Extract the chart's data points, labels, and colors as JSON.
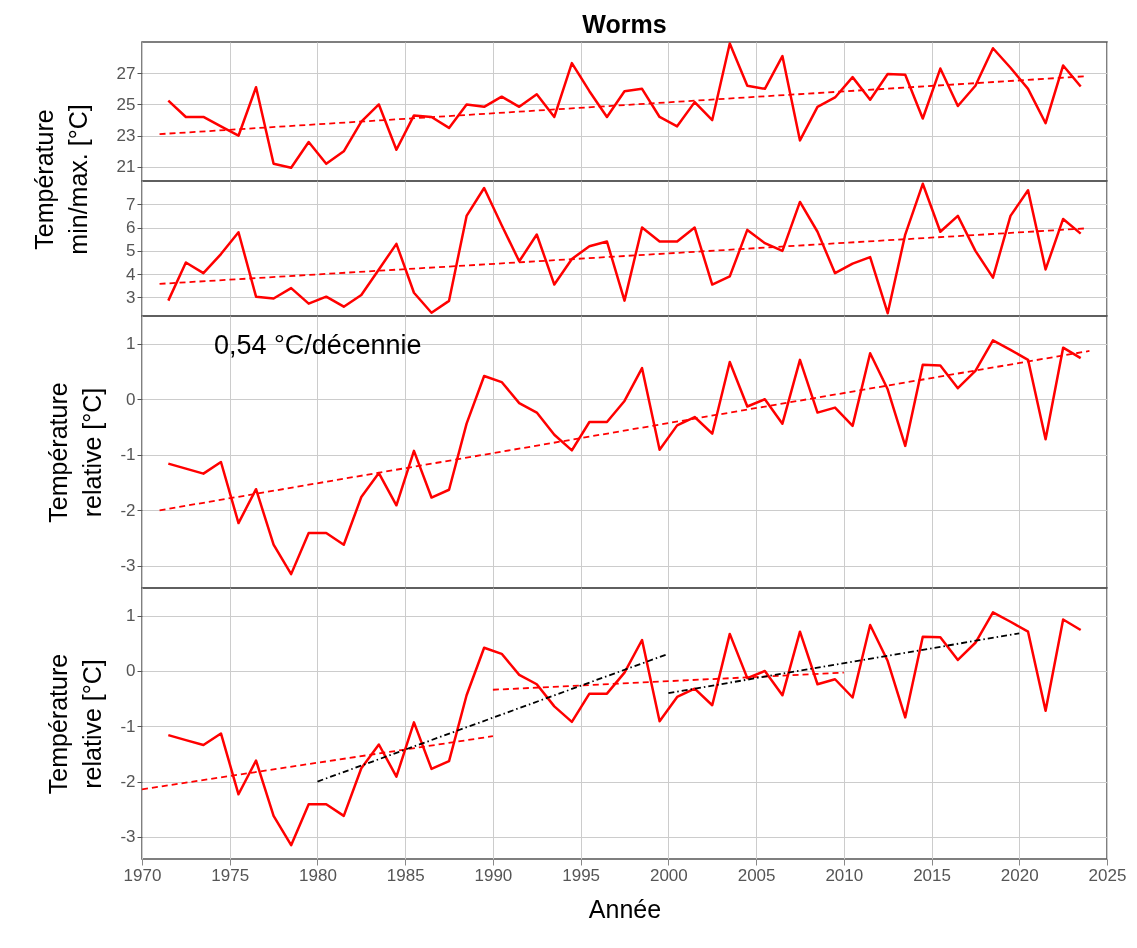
{
  "chart_data": [
    {
      "type": "line",
      "title": "Worms",
      "ylabel": "Température min/max. [°C]",
      "x": [
        1971.5,
        1972.5,
        1973.5,
        1974.5,
        1975.5,
        1976.5,
        1977.5,
        1978.5,
        1979.5,
        1980.5,
        1981.5,
        1982.5,
        1983.5,
        1984.5,
        1985.5,
        1986.5,
        1987.5,
        1988.5,
        1989.5,
        1990.5,
        1991.5,
        1992.5,
        1993.5,
        1994.5,
        1995.5,
        1996.5,
        1997.5,
        1998.5,
        1999.5,
        2000.5,
        2001.5,
        2002.5,
        2003.5,
        2004.5,
        2005.5,
        2006.5,
        2007.5,
        2008.5,
        2009.5,
        2010.5,
        2011.5,
        2012.5,
        2013.5,
        2014.5,
        2015.5,
        2016.5,
        2017.5,
        2018.5,
        2019.5,
        2020.5,
        2021.5,
        2022.5,
        2023.5
      ],
      "xlim": [
        1970,
        2025
      ],
      "xticks": [
        1970,
        1975,
        1980,
        1985,
        1990,
        1995,
        2000,
        2005,
        2010,
        2015,
        2020,
        2025
      ],
      "ylim": [
        20.1,
        29
      ],
      "yticks": [
        21,
        23,
        25,
        27
      ],
      "grid": true,
      "tick_labels": "y",
      "series": [
        {
          "color": "#ff0000",
          "line_style": "solid",
          "values": [
            25.25,
            24.2,
            24.2,
            23.6,
            23.0,
            26.1,
            21.2,
            20.95,
            22.6,
            21.2,
            22.0,
            23.9,
            25.0,
            22.1,
            24.3,
            24.2,
            23.5,
            25.0,
            24.85,
            25.5,
            24.85,
            25.65,
            24.2,
            27.65,
            25.85,
            24.2,
            25.85,
            26.0,
            24.2,
            23.6,
            25.15,
            24.0,
            28.9,
            26.2,
            26.0,
            28.1,
            22.7,
            24.85,
            25.45,
            26.75,
            25.3,
            26.95,
            26.9,
            24.1,
            27.3,
            24.9,
            26.2,
            28.6,
            27.35,
            26.0,
            23.8,
            27.5,
            26.15
          ]
        },
        {
          "color": "#ff0000",
          "line_style": "dashed",
          "x": [
            1971,
            2023.7
          ],
          "values": [
            23.1,
            26.8
          ]
        }
      ]
    },
    {
      "type": "line",
      "x": [
        1971.5,
        1972.5,
        1973.5,
        1974.5,
        1975.5,
        1976.5,
        1977.5,
        1978.5,
        1979.5,
        1980.5,
        1981.5,
        1982.5,
        1983.5,
        1984.5,
        1985.5,
        1986.5,
        1987.5,
        1988.5,
        1989.5,
        1990.5,
        1991.5,
        1992.5,
        1993.5,
        1994.5,
        1995.5,
        1996.5,
        1997.5,
        1998.5,
        1999.5,
        2000.5,
        2001.5,
        2002.5,
        2003.5,
        2004.5,
        2005.5,
        2006.5,
        2007.5,
        2008.5,
        2009.5,
        2010.5,
        2011.5,
        2012.5,
        2013.5,
        2014.5,
        2015.5,
        2016.5,
        2017.5,
        2018.5,
        2019.5,
        2020.5,
        2021.5,
        2022.5,
        2023.5
      ],
      "xlim": [
        1970,
        2025
      ],
      "xticks": [
        1970,
        1975,
        1980,
        1985,
        1990,
        1995,
        2000,
        2005,
        2010,
        2015,
        2020,
        2025
      ],
      "ylim": [
        2.2,
        8
      ],
      "yticks": [
        3,
        4,
        5,
        6,
        7
      ],
      "grid": true,
      "tick_labels": "y",
      "series": [
        {
          "color": "#ff0000",
          "line_style": "solid",
          "values": [
            2.86,
            4.5,
            4.04,
            4.86,
            5.8,
            3.03,
            2.95,
            3.4,
            2.73,
            3.03,
            2.6,
            3.1,
            4.2,
            5.3,
            3.2,
            2.34,
            2.85,
            6.5,
            7.7,
            6.1,
            4.55,
            5.7,
            3.55,
            4.65,
            5.2,
            5.4,
            2.86,
            6.0,
            5.4,
            5.4,
            6.0,
            3.55,
            3.9,
            5.9,
            5.33,
            5.0,
            7.1,
            5.82,
            4.04,
            4.45,
            4.73,
            2.32,
            5.7,
            7.88,
            5.82,
            6.5,
            5.0,
            3.85,
            6.5,
            7.6,
            4.2,
            6.37,
            5.74
          ]
        },
        {
          "color": "#ff0000",
          "line_style": "dashed",
          "x": [
            1971,
            2023.7
          ],
          "values": [
            3.58,
            5.96
          ]
        }
      ]
    },
    {
      "type": "line",
      "ylabel": "Température relative [°C]",
      "annotations": [
        "0,54 °C/décennie"
      ],
      "x": [
        1971.5,
        1972.5,
        1973.5,
        1974.5,
        1975.5,
        1976.5,
        1977.5,
        1978.5,
        1979.5,
        1980.5,
        1981.5,
        1982.5,
        1983.5,
        1984.5,
        1985.5,
        1986.5,
        1987.5,
        1988.5,
        1989.5,
        1990.5,
        1991.5,
        1992.5,
        1993.5,
        1994.5,
        1995.5,
        1996.5,
        1997.5,
        1998.5,
        1999.5,
        2000.5,
        2001.5,
        2002.5,
        2003.5,
        2004.5,
        2005.5,
        2006.5,
        2007.5,
        2008.5,
        2009.5,
        2010.5,
        2011.5,
        2012.5,
        2013.5,
        2014.5,
        2015.5,
        2016.5,
        2017.5,
        2018.5,
        2019.5,
        2020.5,
        2021.5,
        2022.5,
        2023.5
      ],
      "xlim": [
        1970,
        2025
      ],
      "xticks": [
        1970,
        1975,
        1980,
        1985,
        1990,
        1995,
        2000,
        2005,
        2010,
        2015,
        2020,
        2025
      ],
      "ylim": [
        -3.4,
        1.5
      ],
      "yticks": [
        -3,
        -2,
        -1,
        0,
        1
      ],
      "grid": true,
      "tick_labels": "y",
      "series": [
        {
          "color": "#ff0000",
          "line_style": "solid",
          "values": [
            -1.16,
            -1.25,
            -1.34,
            -1.13,
            -2.23,
            -1.62,
            -2.62,
            -3.15,
            -2.41,
            -2.41,
            -2.62,
            -1.76,
            -1.33,
            -1.91,
            -0.93,
            -1.77,
            -1.63,
            -0.44,
            0.42,
            0.31,
            -0.07,
            -0.24,
            -0.64,
            -0.92,
            -0.41,
            -0.41,
            -0.03,
            0.56,
            -0.91,
            -0.47,
            -0.32,
            -0.62,
            0.67,
            -0.13,
            0.0,
            -0.44,
            0.71,
            -0.24,
            -0.15,
            -0.48,
            0.83,
            0.18,
            -0.84,
            0.62,
            0.61,
            0.2,
            0.51,
            1.06,
            0.89,
            0.71,
            -0.72,
            0.93,
            0.74
          ]
        },
        {
          "color": "#ff0000",
          "line_style": "dashed",
          "x": [
            1971,
            2024
          ],
          "values": [
            -2.0,
            0.87
          ]
        }
      ]
    },
    {
      "type": "line",
      "ylabel": "Température relative [°C]",
      "xlabel": "Année",
      "x": [
        1971.5,
        1972.5,
        1973.5,
        1974.5,
        1975.5,
        1976.5,
        1977.5,
        1978.5,
        1979.5,
        1980.5,
        1981.5,
        1982.5,
        1983.5,
        1984.5,
        1985.5,
        1986.5,
        1987.5,
        1988.5,
        1989.5,
        1990.5,
        1991.5,
        1992.5,
        1993.5,
        1994.5,
        1995.5,
        1996.5,
        1997.5,
        1998.5,
        1999.5,
        2000.5,
        2001.5,
        2002.5,
        2003.5,
        2004.5,
        2005.5,
        2006.5,
        2007.5,
        2008.5,
        2009.5,
        2010.5,
        2011.5,
        2012.5,
        2013.5,
        2014.5,
        2015.5,
        2016.5,
        2017.5,
        2018.5,
        2019.5,
        2020.5,
        2021.5,
        2022.5,
        2023.5
      ],
      "xlim": [
        1970,
        2025
      ],
      "xticks": [
        1970,
        1975,
        1980,
        1985,
        1990,
        1995,
        2000,
        2005,
        2010,
        2015,
        2020,
        2025
      ],
      "ylim": [
        -3.4,
        1.5
      ],
      "yticks": [
        -3,
        -2,
        -1,
        0,
        1
      ],
      "grid": true,
      "series": [
        {
          "color": "#ff0000",
          "line_style": "solid",
          "values": [
            -1.16,
            -1.25,
            -1.34,
            -1.13,
            -2.23,
            -1.62,
            -2.62,
            -3.15,
            -2.41,
            -2.41,
            -2.62,
            -1.76,
            -1.33,
            -1.91,
            -0.93,
            -1.77,
            -1.63,
            -0.44,
            0.42,
            0.31,
            -0.07,
            -0.24,
            -0.64,
            -0.92,
            -0.41,
            -0.41,
            -0.03,
            0.56,
            -0.91,
            -0.47,
            -0.32,
            -0.62,
            0.67,
            -0.13,
            0.0,
            -0.44,
            0.71,
            -0.24,
            -0.15,
            -0.48,
            0.83,
            0.18,
            -0.84,
            0.62,
            0.61,
            0.2,
            0.51,
            1.06,
            0.89,
            0.71,
            -0.72,
            0.93,
            0.74
          ]
        },
        {
          "color": "#ff0000",
          "line_style": "dashed",
          "x": [
            1970,
            1990
          ],
          "values": [
            -2.14,
            -1.18
          ]
        },
        {
          "color": "#ff0000",
          "line_style": "dashed",
          "x": [
            1990,
            2010
          ],
          "values": [
            -0.34,
            -0.03
          ]
        },
        {
          "color": "#000000",
          "line_style": "dashdot",
          "x": [
            1980,
            2000
          ],
          "values": [
            -2.0,
            0.31
          ]
        },
        {
          "color": "#000000",
          "line_style": "dashdot",
          "x": [
            2000,
            2020
          ],
          "values": [
            -0.4,
            0.68
          ]
        }
      ]
    }
  ]
}
